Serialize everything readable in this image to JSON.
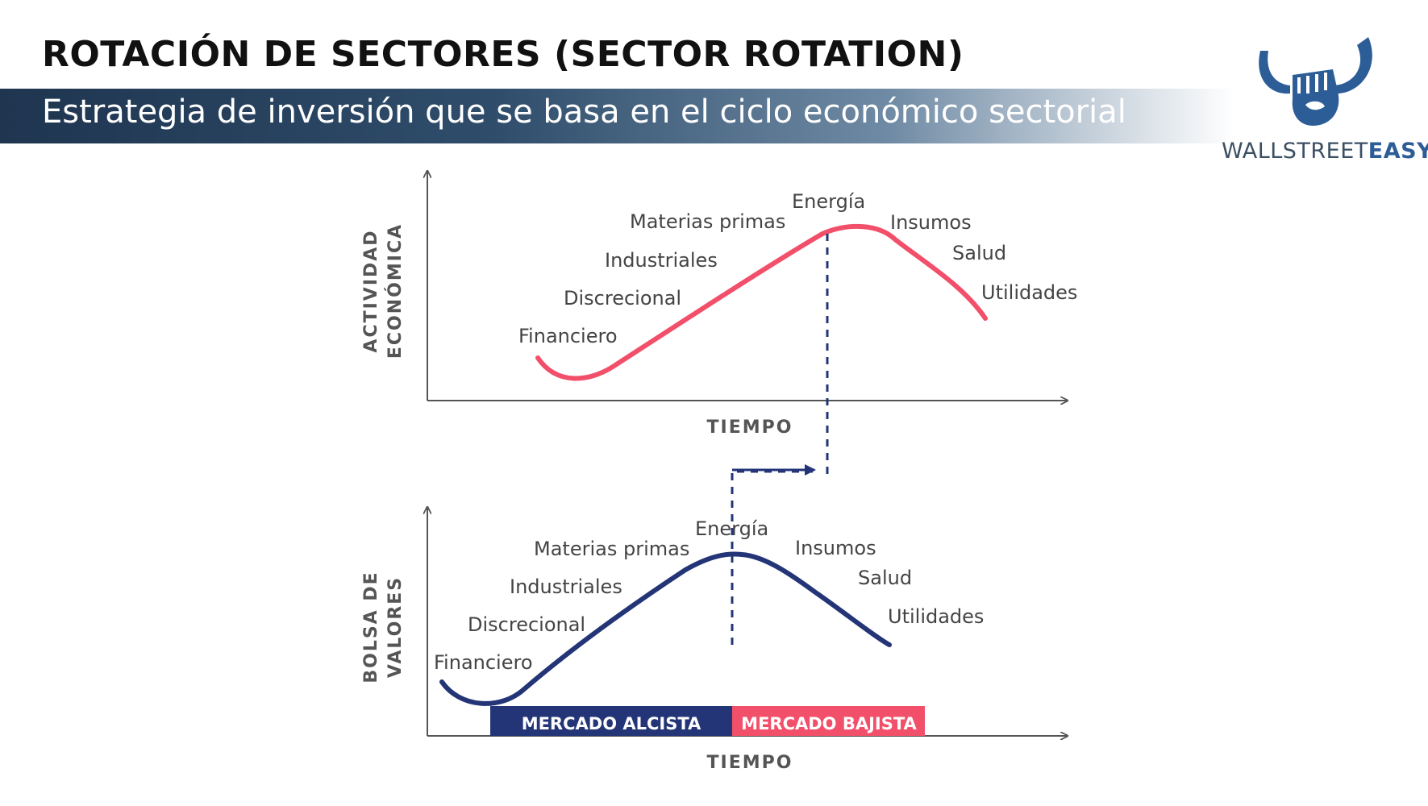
{
  "header": {
    "title": "ROTACIÓN DE SECTORES (SECTOR ROTATION)",
    "subtitle": "Estrategia de inversión que se basa en el ciclo económico sectorial"
  },
  "logo": {
    "text_main": "WALLSTREET",
    "text_accent": "EASY"
  },
  "colors": {
    "economy_curve": "#f2506a",
    "market_curve": "#233577",
    "bull_band": "#233577",
    "bear_band": "#f2506a",
    "axis": "#555555"
  },
  "top_chart": {
    "ylabel_line1": "ACTIVIDAD",
    "ylabel_line2": "ECONÓMICA",
    "xlabel": "TIEMPO",
    "sectors": [
      "Financiero",
      "Discrecional",
      "Industriales",
      "Materias primas",
      "Energía",
      "Insumos",
      "Salud",
      "Utilidades"
    ]
  },
  "bottom_chart": {
    "ylabel_line1": "BOLSA DE",
    "ylabel_line2": "VALORES",
    "xlabel": "TIEMPO",
    "sectors": [
      "Financiero",
      "Discrecional",
      "Industriales",
      "Materias primas",
      "Energía",
      "Insumos",
      "Salud",
      "Utilidades"
    ],
    "bull_market_label": "MERCADO ALCISTA",
    "bear_market_label": "MERCADO BAJISTA"
  }
}
